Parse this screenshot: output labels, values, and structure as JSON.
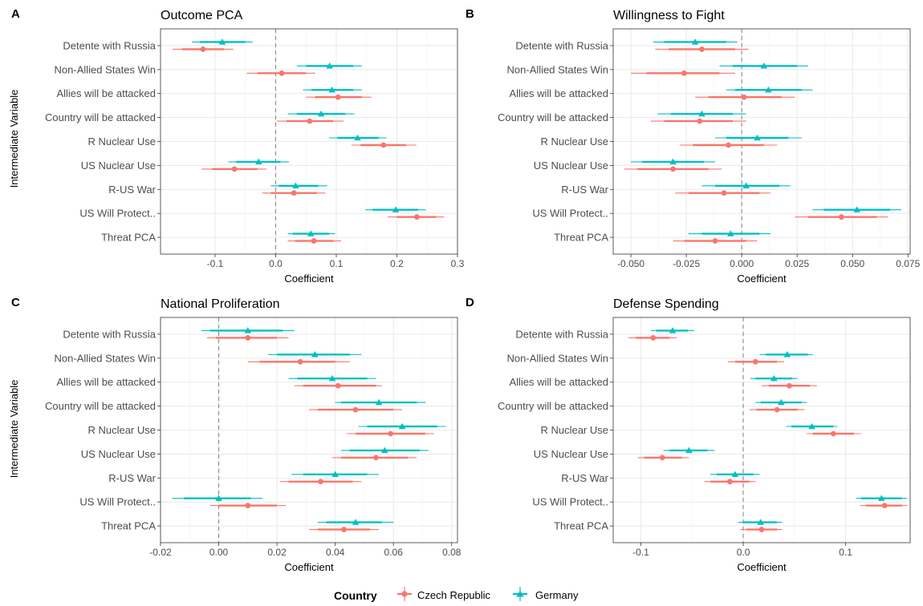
{
  "figure": {
    "ylabel": "Intermediate Variable",
    "legend": {
      "title": "Country",
      "position": "bottom",
      "entries": [
        {
          "name": "Czech Republic",
          "color": "#F8766D",
          "marker": "circle"
        },
        {
          "name": "Germany",
          "color": "#00BFC4",
          "marker": "triangle"
        }
      ]
    }
  },
  "chart_data": [
    {
      "type": "scatter",
      "panel": "A",
      "title": "Outcome PCA",
      "xlabel": "Coefficient",
      "ylabel": "Intermediate Variable",
      "categories": [
        "Detente with Russia",
        "Non-Allied States Win",
        "Allies will be attacked",
        "Country will be attacked",
        "R Nuclear Use",
        "US Nuclear Use",
        "R-US War",
        "US Will Protect..",
        "Threat PCA"
      ],
      "xlim": [
        -0.19,
        0.3
      ],
      "xticks": [
        -0.1,
        0.0,
        0.1,
        0.2,
        0.3
      ],
      "xtick_labels": [
        "-0.1",
        "0.0",
        "0.1",
        "0.2",
        "0.3"
      ],
      "reference_line": 0,
      "grid": true,
      "series": [
        {
          "name": "Germany",
          "marker": "triangle",
          "color": "#00BFC4",
          "estimates": [
            -0.088,
            0.089,
            0.093,
            0.075,
            0.135,
            -0.028,
            0.033,
            0.198,
            0.058
          ],
          "ci90": [
            [
              -0.125,
              -0.05
            ],
            [
              0.05,
              0.128
            ],
            [
              0.059,
              0.128
            ],
            [
              0.035,
              0.115
            ],
            [
              0.102,
              0.17
            ],
            [
              -0.065,
              0.008
            ],
            [
              0.005,
              0.07
            ],
            [
              0.16,
              0.235
            ],
            [
              0.028,
              0.088
            ]
          ],
          "ci95": [
            [
              -0.138,
              -0.038
            ],
            [
              0.035,
              0.142
            ],
            [
              0.045,
              0.142
            ],
            [
              0.02,
              0.13
            ],
            [
              0.088,
              0.183
            ],
            [
              -0.078,
              0.022
            ],
            [
              -0.008,
              0.085
            ],
            [
              0.148,
              0.248
            ],
            [
              0.02,
              0.098
            ]
          ]
        },
        {
          "name": "Czech Republic",
          "marker": "circle",
          "color": "#F8766D",
          "estimates": [
            -0.12,
            0.01,
            0.103,
            0.056,
            0.178,
            -0.068,
            0.03,
            0.233,
            0.063
          ],
          "ci90": [
            [
              -0.155,
              -0.085
            ],
            [
              -0.03,
              0.05
            ],
            [
              0.065,
              0.142
            ],
            [
              0.018,
              0.095
            ],
            [
              0.14,
              0.215
            ],
            [
              -0.105,
              -0.03
            ],
            [
              -0.008,
              0.068
            ],
            [
              0.2,
              0.265
            ],
            [
              0.032,
              0.095
            ]
          ],
          "ci95": [
            [
              -0.17,
              -0.07
            ],
            [
              -0.048,
              0.065
            ],
            [
              0.05,
              0.158
            ],
            [
              0.002,
              0.112
            ],
            [
              0.125,
              0.232
            ],
            [
              -0.122,
              -0.015
            ],
            [
              -0.022,
              0.082
            ],
            [
              0.185,
              0.278
            ],
            [
              0.02,
              0.108
            ]
          ]
        }
      ]
    },
    {
      "type": "scatter",
      "panel": "B",
      "title": "Willingness to Fight",
      "xlabel": "Coefficient",
      "ylabel": "",
      "categories": [
        "Detente with Russia",
        "Non-Allied States Win",
        "Allies will be attacked",
        "Country will be attacked",
        "R Nuclear Use",
        "US Nuclear Use",
        "R-US War",
        "US Will Protect..",
        "Threat PCA"
      ],
      "xlim": [
        -0.058,
        0.076
      ],
      "xticks": [
        -0.05,
        -0.025,
        0.0,
        0.025,
        0.05,
        0.075
      ],
      "xtick_labels": [
        "-0.050",
        "-0.025",
        "0.000",
        "0.025",
        "0.050",
        "0.075"
      ],
      "reference_line": 0,
      "grid": true,
      "series": [
        {
          "name": "Germany",
          "marker": "triangle",
          "color": "#00BFC4",
          "estimates": [
            -0.021,
            0.01,
            0.012,
            -0.018,
            0.007,
            -0.031,
            0.002,
            0.052,
            -0.005
          ],
          "ci90": [
            [
              -0.035,
              -0.007
            ],
            [
              -0.004,
              0.025
            ],
            [
              -0.003,
              0.027
            ],
            [
              -0.032,
              -0.004
            ],
            [
              -0.007,
              0.021
            ],
            [
              -0.045,
              -0.017
            ],
            [
              -0.012,
              0.017
            ],
            [
              0.037,
              0.067
            ],
            [
              -0.018,
              0.008
            ]
          ],
          "ci95": [
            [
              -0.04,
              -0.002
            ],
            [
              -0.01,
              0.03
            ],
            [
              -0.007,
              0.032
            ],
            [
              -0.038,
              0.002
            ],
            [
              -0.012,
              0.027
            ],
            [
              -0.05,
              -0.012
            ],
            [
              -0.018,
              0.022
            ],
            [
              0.032,
              0.072
            ],
            [
              -0.024,
              0.013
            ]
          ]
        },
        {
          "name": "Czech Republic",
          "marker": "circle",
          "color": "#F8766D",
          "estimates": [
            -0.018,
            -0.026,
            0.001,
            -0.019,
            -0.006,
            -0.031,
            -0.008,
            0.045,
            -0.012
          ],
          "ci90": [
            [
              -0.033,
              -0.003
            ],
            [
              -0.043,
              -0.01
            ],
            [
              -0.015,
              0.018
            ],
            [
              -0.035,
              -0.004
            ],
            [
              -0.022,
              0.01
            ],
            [
              -0.047,
              -0.015
            ],
            [
              -0.024,
              0.008
            ],
            [
              0.03,
              0.061
            ],
            [
              -0.026,
              0.002
            ]
          ],
          "ci95": [
            [
              -0.039,
              0.003
            ],
            [
              -0.05,
              -0.003
            ],
            [
              -0.021,
              0.024
            ],
            [
              -0.041,
              0.002
            ],
            [
              -0.028,
              0.016
            ],
            [
              -0.053,
              -0.009
            ],
            [
              -0.03,
              0.013
            ],
            [
              0.024,
              0.066
            ],
            [
              -0.031,
              0.007
            ]
          ]
        }
      ]
    },
    {
      "type": "scatter",
      "panel": "C",
      "title": "National Proliferation",
      "xlabel": "Coefficient",
      "ylabel": "Intermediate Variable",
      "categories": [
        "Detente with Russia",
        "Non-Allied States Win",
        "Allies will be attacked",
        "Country will be attacked",
        "R Nuclear Use",
        "US Nuclear Use",
        "R-US War",
        "US Will Protect..",
        "Threat PCA"
      ],
      "xlim": [
        -0.02,
        0.082
      ],
      "xticks": [
        -0.02,
        0.0,
        0.02,
        0.04,
        0.06,
        0.08
      ],
      "xtick_labels": [
        "-0.02",
        "0.00",
        "0.02",
        "0.04",
        "0.06",
        "0.08"
      ],
      "reference_line": 0,
      "grid": true,
      "series": [
        {
          "name": "Germany",
          "marker": "triangle",
          "color": "#00BFC4",
          "estimates": [
            0.01,
            0.033,
            0.039,
            0.055,
            0.063,
            0.057,
            0.04,
            0.0,
            0.047
          ],
          "ci90": [
            [
              -0.003,
              0.022
            ],
            [
              0.02,
              0.045
            ],
            [
              0.027,
              0.051
            ],
            [
              0.042,
              0.068
            ],
            [
              0.051,
              0.075
            ],
            [
              0.045,
              0.069
            ],
            [
              0.029,
              0.051
            ],
            [
              -0.012,
              0.011
            ],
            [
              0.037,
              0.056
            ]
          ],
          "ci95": [
            [
              -0.006,
              0.026
            ],
            [
              0.017,
              0.049
            ],
            [
              0.024,
              0.054
            ],
            [
              0.04,
              0.071
            ],
            [
              0.048,
              0.078
            ],
            [
              0.042,
              0.072
            ],
            [
              0.025,
              0.055
            ],
            [
              -0.016,
              0.015
            ],
            [
              0.034,
              0.06
            ]
          ]
        },
        {
          "name": "Czech Republic",
          "marker": "circle",
          "color": "#F8766D",
          "estimates": [
            0.01,
            0.028,
            0.041,
            0.047,
            0.059,
            0.054,
            0.035,
            0.01,
            0.043
          ],
          "ci90": [
            [
              -0.001,
              0.02
            ],
            [
              0.014,
              0.04
            ],
            [
              0.029,
              0.054
            ],
            [
              0.034,
              0.06
            ],
            [
              0.047,
              0.071
            ],
            [
              0.042,
              0.065
            ],
            [
              0.024,
              0.046
            ],
            [
              0.0,
              0.02
            ],
            [
              0.034,
              0.052
            ]
          ],
          "ci95": [
            [
              -0.004,
              0.024
            ],
            [
              0.01,
              0.045
            ],
            [
              0.026,
              0.056
            ],
            [
              0.031,
              0.063
            ],
            [
              0.044,
              0.074
            ],
            [
              0.039,
              0.068
            ],
            [
              0.021,
              0.049
            ],
            [
              -0.003,
              0.023
            ],
            [
              0.031,
              0.055
            ]
          ]
        }
      ]
    },
    {
      "type": "scatter",
      "panel": "D",
      "title": "Defense Spending",
      "xlabel": "Coefficient",
      "ylabel": "",
      "categories": [
        "Detente with Russia",
        "Non-Allied States Win",
        "Allies will be attacked",
        "Country will be attacked",
        "R Nuclear Use",
        "US Nuclear Use",
        "R-US War",
        "US Will Protect..",
        "Threat PCA"
      ],
      "xlim": [
        -0.127,
        0.163
      ],
      "xticks": [
        -0.1,
        0.0,
        0.1
      ],
      "xtick_labels": [
        "-0.1",
        "0.0",
        "0.1"
      ],
      "reference_line": 0,
      "grid": true,
      "series": [
        {
          "name": "Germany",
          "marker": "triangle",
          "color": "#00BFC4",
          "estimates": [
            -0.069,
            0.043,
            0.03,
            0.037,
            0.067,
            -0.053,
            -0.008,
            0.135,
            0.017
          ],
          "ci90": [
            [
              -0.085,
              -0.054
            ],
            [
              0.022,
              0.063
            ],
            [
              0.012,
              0.048
            ],
            [
              0.017,
              0.057
            ],
            [
              0.047,
              0.088
            ],
            [
              -0.072,
              -0.035
            ],
            [
              -0.026,
              0.01
            ],
            [
              0.115,
              0.155
            ],
            [
              0.0,
              0.033
            ]
          ],
          "ci95": [
            [
              -0.09,
              -0.048
            ],
            [
              0.016,
              0.068
            ],
            [
              0.007,
              0.053
            ],
            [
              0.012,
              0.062
            ],
            [
              0.042,
              0.092
            ],
            [
              -0.078,
              -0.028
            ],
            [
              -0.032,
              0.016
            ],
            [
              0.11,
              0.16
            ],
            [
              -0.005,
              0.038
            ]
          ]
        },
        {
          "name": "Czech Republic",
          "marker": "circle",
          "color": "#F8766D",
          "estimates": [
            -0.088,
            0.012,
            0.045,
            0.033,
            0.088,
            -0.079,
            -0.013,
            0.138,
            0.018
          ],
          "ci90": [
            [
              -0.105,
              -0.072
            ],
            [
              -0.008,
              0.033
            ],
            [
              0.025,
              0.065
            ],
            [
              0.013,
              0.053
            ],
            [
              0.068,
              0.108
            ],
            [
              -0.097,
              -0.06
            ],
            [
              -0.032,
              0.006
            ],
            [
              0.12,
              0.155
            ],
            [
              0.003,
              0.033
            ]
          ],
          "ci95": [
            [
              -0.112,
              -0.065
            ],
            [
              -0.015,
              0.04
            ],
            [
              0.018,
              0.072
            ],
            [
              0.006,
              0.06
            ],
            [
              0.062,
              0.115
            ],
            [
              -0.103,
              -0.053
            ],
            [
              -0.038,
              0.012
            ],
            [
              0.114,
              0.16
            ],
            [
              -0.003,
              0.038
            ]
          ]
        }
      ]
    }
  ]
}
